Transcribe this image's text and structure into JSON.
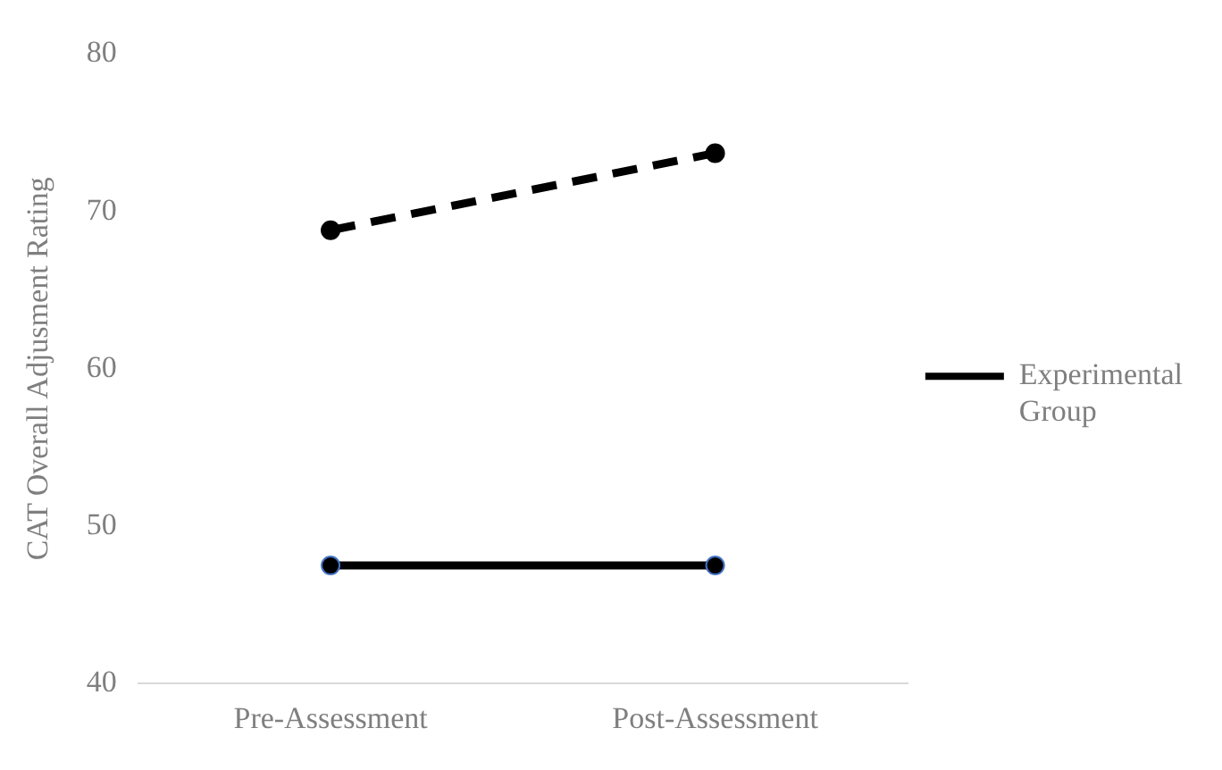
{
  "chart_data": {
    "type": "line",
    "ylabel": "CAT Overall Adjusment Rating",
    "categories": [
      "Pre-Assessment",
      "Post-Assessment"
    ],
    "series": [
      {
        "name": "Experimental Group",
        "color": "#000000",
        "values": [
          68.8,
          73.7
        ],
        "line_style": "dashed"
      },
      {
        "color": "#000000",
        "values": [
          47.5,
          47.5
        ],
        "line_style": "solid"
      }
    ],
    "ylim": [
      40,
      80
    ],
    "yticks": [
      40,
      50,
      60,
      70,
      80
    ],
    "grid": false,
    "legend": "right",
    "marker": "circle"
  }
}
